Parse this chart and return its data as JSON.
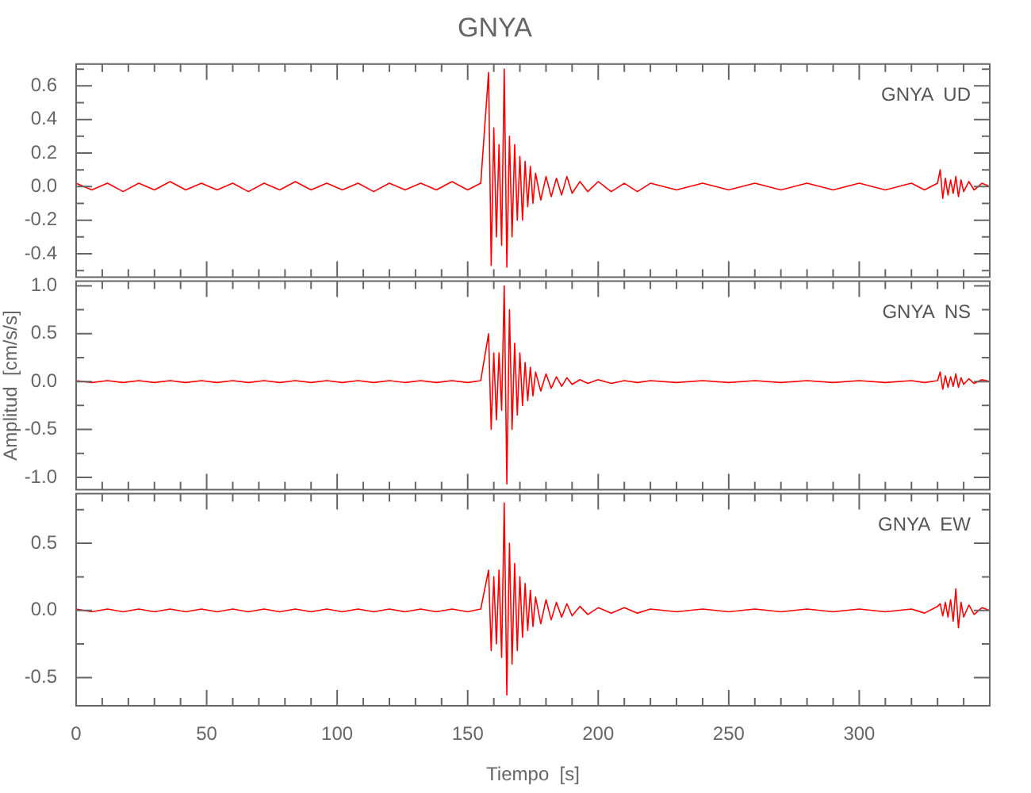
{
  "chart_data": [
    {
      "type": "line",
      "title": "GNYA",
      "annotations": [
        "GNYA  UD"
      ],
      "tick_labels": "y",
      "x": [
        0,
        6,
        12,
        18,
        24,
        30,
        36,
        42,
        48,
        54,
        60,
        66,
        72,
        78,
        84,
        90,
        96,
        102,
        108,
        114,
        120,
        126,
        132,
        138,
        144,
        150,
        155,
        158,
        159,
        160,
        161,
        162,
        163,
        164,
        165,
        166,
        167,
        168,
        169,
        170,
        171,
        172,
        173,
        174,
        175,
        176,
        178,
        180,
        182,
        184,
        186,
        188,
        190,
        193,
        196,
        200,
        205,
        210,
        215,
        220,
        230,
        240,
        250,
        260,
        270,
        280,
        290,
        300,
        310,
        320,
        325,
        330,
        331,
        332,
        333,
        334,
        335,
        336,
        337,
        338,
        339,
        340,
        342,
        344,
        347,
        350
      ],
      "series": [
        {
          "color": "#ff0000",
          "values": [
            0.02,
            -0.02,
            0.02,
            -0.03,
            0.02,
            -0.02,
            0.03,
            -0.02,
            0.02,
            -0.02,
            0.02,
            -0.03,
            0.02,
            -0.02,
            0.03,
            -0.02,
            0.02,
            -0.02,
            0.02,
            -0.03,
            0.02,
            -0.02,
            0.02,
            -0.02,
            0.03,
            -0.02,
            0.02,
            0.68,
            -0.47,
            0.35,
            -0.3,
            0.25,
            -0.35,
            0.7,
            -0.48,
            0.3,
            -0.3,
            0.25,
            -0.2,
            0.18,
            -0.2,
            0.15,
            -0.12,
            0.12,
            -0.1,
            0.08,
            -0.08,
            0.06,
            -0.06,
            0.05,
            -0.05,
            0.06,
            -0.04,
            0.03,
            -0.03,
            0.03,
            -0.03,
            0.02,
            -0.03,
            0.02,
            -0.02,
            0.02,
            -0.02,
            0.02,
            -0.02,
            0.02,
            -0.02,
            0.02,
            -0.02,
            0.02,
            -0.02,
            0.02,
            0.1,
            -0.07,
            0.05,
            -0.05,
            0.04,
            -0.04,
            0.06,
            -0.06,
            0.04,
            -0.03,
            0.03,
            -0.02,
            0.02,
            0.0
          ]
        }
      ],
      "xlim": [
        0,
        350
      ],
      "xticks": [
        0,
        {
          "value": 10,
          "label": null
        },
        {
          "value": 20,
          "label": null
        },
        {
          "value": 30,
          "label": null
        },
        {
          "value": 40,
          "label": null
        },
        50,
        {
          "value": 60,
          "label": null
        },
        {
          "value": 70,
          "label": null
        },
        {
          "value": 80,
          "label": null
        },
        {
          "value": 90,
          "label": null
        },
        100,
        {
          "value": 110,
          "label": null
        },
        {
          "value": 120,
          "label": null
        },
        {
          "value": 130,
          "label": null
        },
        {
          "value": 140,
          "label": null
        },
        150,
        {
          "value": 160,
          "label": null
        },
        {
          "value": 170,
          "label": null
        },
        {
          "value": 180,
          "label": null
        },
        {
          "value": 190,
          "label": null
        },
        200,
        {
          "value": 210,
          "label": null
        },
        {
          "value": 220,
          "label": null
        },
        {
          "value": 230,
          "label": null
        },
        {
          "value": 240,
          "label": null
        },
        250,
        {
          "value": 260,
          "label": null
        },
        {
          "value": 270,
          "label": null
        },
        {
          "value": 280,
          "label": null
        },
        {
          "value": 290,
          "label": null
        },
        300,
        {
          "value": 310,
          "label": null
        },
        {
          "value": 320,
          "label": null
        },
        {
          "value": 330,
          "label": null
        },
        {
          "value": 340,
          "label": null
        }
      ],
      "ylim": [
        -0.54,
        0.73
      ],
      "yticks": [
        {
          "value": -0.5,
          "label": null
        },
        {
          "value": -0.4,
          "label": "-0.4"
        },
        {
          "value": -0.3,
          "label": null
        },
        {
          "value": -0.2,
          "label": "-0.2"
        },
        {
          "value": -0.1,
          "label": null
        },
        {
          "value": 0,
          "label": "0.0"
        },
        {
          "value": 0.1,
          "label": null
        },
        {
          "value": 0.2,
          "label": "0.2"
        },
        {
          "value": 0.3,
          "label": null
        },
        {
          "value": 0.4,
          "label": "0.4"
        },
        {
          "value": 0.5,
          "label": null
        },
        {
          "value": 0.6,
          "label": "0.6"
        },
        {
          "value": 0.7,
          "label": null
        }
      ]
    },
    {
      "type": "line",
      "ylabel": "Amplitud  [cm/s/s]",
      "annotations": [
        "GNYA  NS"
      ],
      "tick_labels": "y",
      "x": [
        0,
        6,
        12,
        18,
        24,
        30,
        36,
        42,
        48,
        54,
        60,
        66,
        72,
        78,
        84,
        90,
        96,
        102,
        108,
        114,
        120,
        126,
        132,
        138,
        144,
        150,
        155,
        158,
        159,
        160,
        161,
        162,
        163,
        164,
        165,
        166,
        167,
        168,
        169,
        170,
        171,
        172,
        173,
        174,
        175,
        176,
        178,
        180,
        182,
        184,
        186,
        188,
        190,
        193,
        196,
        200,
        205,
        210,
        215,
        220,
        230,
        240,
        250,
        260,
        270,
        280,
        290,
        300,
        310,
        320,
        325,
        330,
        331,
        332,
        333,
        334,
        335,
        336,
        337,
        338,
        339,
        340,
        342,
        344,
        347,
        350
      ],
      "series": [
        {
          "color": "#ff0000",
          "values": [
            0.01,
            -0.01,
            0.01,
            -0.01,
            0.01,
            -0.01,
            0.01,
            -0.01,
            0.01,
            -0.01,
            0.01,
            -0.01,
            0.01,
            -0.01,
            0.01,
            -0.01,
            0.01,
            -0.01,
            0.01,
            -0.01,
            0.01,
            -0.01,
            0.01,
            -0.01,
            0.01,
            -0.01,
            0.01,
            0.5,
            -0.5,
            0.3,
            -0.4,
            0.3,
            -0.3,
            1.0,
            -1.07,
            0.75,
            -0.5,
            0.4,
            -0.35,
            0.3,
            -0.25,
            0.2,
            -0.2,
            0.15,
            -0.15,
            0.1,
            -0.1,
            0.08,
            -0.07,
            0.05,
            -0.05,
            0.04,
            -0.03,
            0.02,
            -0.02,
            0.02,
            -0.02,
            0.01,
            -0.01,
            0.01,
            -0.01,
            0.01,
            -0.01,
            0.01,
            -0.01,
            0.01,
            -0.01,
            0.01,
            -0.01,
            0.01,
            -0.01,
            0.01,
            0.1,
            -0.08,
            0.06,
            -0.06,
            0.05,
            -0.05,
            0.08,
            -0.06,
            0.04,
            -0.03,
            0.03,
            -0.02,
            0.02,
            0.0
          ]
        }
      ],
      "xlim": [
        0,
        350
      ],
      "xticks": [
        0,
        {
          "value": 10,
          "label": null
        },
        {
          "value": 20,
          "label": null
        },
        {
          "value": 30,
          "label": null
        },
        {
          "value": 40,
          "label": null
        },
        50,
        {
          "value": 60,
          "label": null
        },
        {
          "value": 70,
          "label": null
        },
        {
          "value": 80,
          "label": null
        },
        {
          "value": 90,
          "label": null
        },
        100,
        {
          "value": 110,
          "label": null
        },
        {
          "value": 120,
          "label": null
        },
        {
          "value": 130,
          "label": null
        },
        {
          "value": 140,
          "label": null
        },
        150,
        {
          "value": 160,
          "label": null
        },
        {
          "value": 170,
          "label": null
        },
        {
          "value": 180,
          "label": null
        },
        {
          "value": 190,
          "label": null
        },
        200,
        {
          "value": 210,
          "label": null
        },
        {
          "value": 220,
          "label": null
        },
        {
          "value": 230,
          "label": null
        },
        {
          "value": 240,
          "label": null
        },
        250,
        {
          "value": 260,
          "label": null
        },
        {
          "value": 270,
          "label": null
        },
        {
          "value": 280,
          "label": null
        },
        {
          "value": 290,
          "label": null
        },
        300,
        {
          "value": 310,
          "label": null
        },
        {
          "value": 320,
          "label": null
        },
        {
          "value": 330,
          "label": null
        },
        {
          "value": 340,
          "label": null
        }
      ],
      "ylim": [
        -1.13,
        1.05
      ],
      "yticks": [
        {
          "value": -1.0,
          "label": "-1.0"
        },
        {
          "value": -0.75,
          "label": null
        },
        {
          "value": -0.5,
          "label": "-0.5"
        },
        {
          "value": -0.25,
          "label": null
        },
        {
          "value": 0,
          "label": "0.0"
        },
        {
          "value": 0.25,
          "label": null
        },
        {
          "value": 0.5,
          "label": "0.5"
        },
        {
          "value": 0.75,
          "label": null
        },
        {
          "value": 1.0,
          "label": "1.0"
        }
      ]
    },
    {
      "type": "line",
      "xlabel": "Tiempo  [s]",
      "annotations": [
        "GNYA  EW"
      ],
      "x": [
        0,
        6,
        12,
        18,
        24,
        30,
        36,
        42,
        48,
        54,
        60,
        66,
        72,
        78,
        84,
        90,
        96,
        102,
        108,
        114,
        120,
        126,
        132,
        138,
        144,
        150,
        155,
        158,
        159,
        160,
        161,
        162,
        163,
        164,
        165,
        166,
        167,
        168,
        169,
        170,
        171,
        172,
        173,
        174,
        175,
        176,
        178,
        180,
        182,
        184,
        186,
        188,
        190,
        193,
        196,
        200,
        205,
        210,
        215,
        220,
        230,
        240,
        250,
        260,
        270,
        280,
        290,
        300,
        310,
        320,
        325,
        330,
        331,
        332,
        333,
        334,
        335,
        336,
        337,
        338,
        339,
        340,
        342,
        344,
        347,
        350
      ],
      "series": [
        {
          "color": "#ff0000",
          "values": [
            0.01,
            -0.01,
            0.01,
            -0.01,
            0.01,
            -0.01,
            0.01,
            -0.01,
            0.01,
            -0.01,
            0.01,
            -0.01,
            0.01,
            -0.01,
            0.01,
            -0.01,
            0.01,
            -0.01,
            0.01,
            -0.01,
            0.01,
            -0.01,
            0.01,
            -0.01,
            0.01,
            -0.01,
            0.01,
            0.3,
            -0.3,
            0.25,
            -0.25,
            0.3,
            -0.35,
            0.8,
            -0.63,
            0.5,
            -0.4,
            0.35,
            -0.3,
            0.25,
            -0.2,
            0.2,
            -0.15,
            0.15,
            -0.12,
            0.1,
            -0.1,
            0.08,
            -0.07,
            0.06,
            -0.05,
            0.05,
            -0.04,
            0.03,
            -0.03,
            0.02,
            -0.02,
            0.02,
            -0.02,
            0.01,
            -0.01,
            0.01,
            -0.01,
            0.01,
            -0.01,
            0.01,
            -0.01,
            0.01,
            -0.01,
            0.01,
            -0.02,
            0.03,
            0.05,
            -0.04,
            0.06,
            -0.05,
            0.08,
            -0.08,
            0.16,
            -0.13,
            0.06,
            -0.05,
            0.04,
            -0.03,
            0.02,
            0.0
          ]
        }
      ],
      "xlim": [
        0,
        350
      ],
      "xticks": [
        0,
        {
          "value": 10,
          "label": null
        },
        {
          "value": 20,
          "label": null
        },
        {
          "value": 30,
          "label": null
        },
        {
          "value": 40,
          "label": null
        },
        50,
        {
          "value": 60,
          "label": null
        },
        {
          "value": 70,
          "label": null
        },
        {
          "value": 80,
          "label": null
        },
        {
          "value": 90,
          "label": null
        },
        100,
        {
          "value": 110,
          "label": null
        },
        {
          "value": 120,
          "label": null
        },
        {
          "value": 130,
          "label": null
        },
        {
          "value": 140,
          "label": null
        },
        150,
        {
          "value": 160,
          "label": null
        },
        {
          "value": 170,
          "label": null
        },
        {
          "value": 180,
          "label": null
        },
        {
          "value": 190,
          "label": null
        },
        200,
        {
          "value": 210,
          "label": null
        },
        {
          "value": 220,
          "label": null
        },
        {
          "value": 230,
          "label": null
        },
        {
          "value": 240,
          "label": null
        },
        250,
        {
          "value": 260,
          "label": null
        },
        {
          "value": 270,
          "label": null
        },
        {
          "value": 280,
          "label": null
        },
        {
          "value": 290,
          "label": null
        },
        300,
        {
          "value": 310,
          "label": null
        },
        {
          "value": 320,
          "label": null
        },
        {
          "value": 330,
          "label": null
        },
        {
          "value": 340,
          "label": null
        }
      ],
      "ylim": [
        -0.71,
        0.87
      ],
      "yticks": [
        {
          "value": -0.5,
          "label": "-0.5"
        },
        {
          "value": -0.25,
          "label": null
        },
        {
          "value": 0,
          "label": "0.0"
        },
        {
          "value": 0.25,
          "label": null
        },
        {
          "value": 0.5,
          "label": "0.5"
        },
        {
          "value": 0.75,
          "label": null
        }
      ]
    }
  ]
}
